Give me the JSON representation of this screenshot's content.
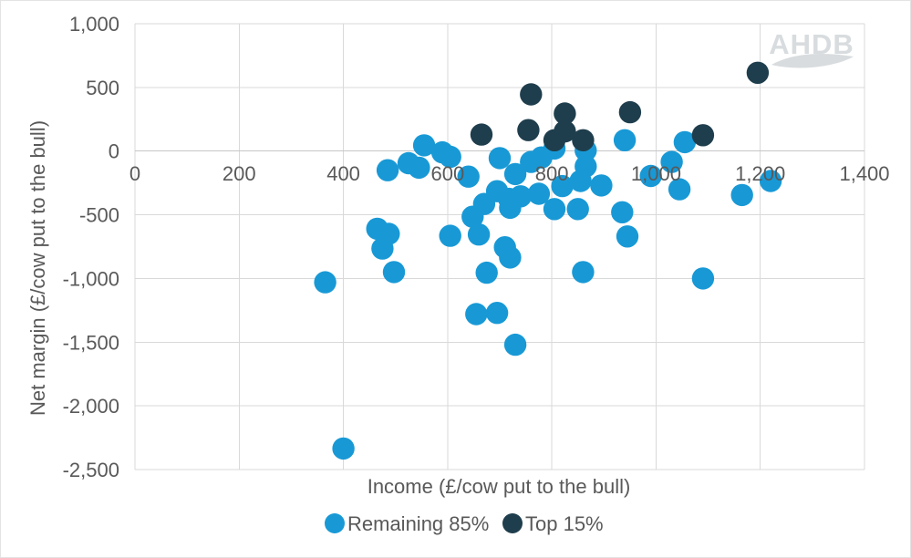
{
  "logo": {
    "text": "AHDB"
  },
  "legend": {
    "items": [
      {
        "label": "Remaining 85%",
        "color": "#1899D6"
      },
      {
        "label": "Top 15%",
        "color": "#1F3E4D"
      }
    ]
  },
  "styles": {
    "text_color": "#595959",
    "grid_color": "#D9D9D9",
    "zero_axis_color": "#C6C6C6",
    "logo_color": "#D8DCDE",
    "background": "#FFFFFF",
    "marker_radius": 12.2,
    "legend_marker_radius": 11
  },
  "chart_data": {
    "type": "scatter",
    "title": "",
    "xlabel": "Income (£/cow put to the bull)",
    "ylabel": "Net margin (£/cow put to the bull)",
    "xlim": [
      0,
      1400
    ],
    "ylim": [
      -2500,
      1000
    ],
    "x_tick_values": [
      0,
      200,
      400,
      600,
      800,
      1000,
      1200,
      1400
    ],
    "x_tick_labels": [
      "0",
      "200",
      "400",
      "600",
      "800",
      "1,000",
      "1,200",
      "1,400"
    ],
    "y_tick_values": [
      1000,
      500,
      0,
      -500,
      -1000,
      -1500,
      -2000,
      -2500
    ],
    "y_tick_labels": [
      "1,000",
      "500",
      "0",
      "-500",
      "-1,000",
      "-1,500",
      "-2,000",
      "-2,500"
    ],
    "grid": true,
    "legend_position": "bottom",
    "series": [
      {
        "name": "Remaining 85%",
        "color": "#1899D6",
        "points": [
          [
            365,
            -1030
          ],
          [
            400,
            -2335
          ],
          [
            465,
            -610
          ],
          [
            485,
            -150
          ],
          [
            487,
            -650
          ],
          [
            475,
            -765
          ],
          [
            497,
            -950
          ],
          [
            525,
            -95
          ],
          [
            545,
            -130
          ],
          [
            555,
            45
          ],
          [
            590,
            -10
          ],
          [
            605,
            -45
          ],
          [
            640,
            -200
          ],
          [
            605,
            -665
          ],
          [
            660,
            -655
          ],
          [
            648,
            -515
          ],
          [
            670,
            -415
          ],
          [
            695,
            -315
          ],
          [
            718,
            -375
          ],
          [
            655,
            -1280
          ],
          [
            695,
            -1270
          ],
          [
            675,
            -955
          ],
          [
            710,
            -755
          ],
          [
            720,
            -835
          ],
          [
            730,
            -1520
          ],
          [
            700,
            -55
          ],
          [
            730,
            -180
          ],
          [
            740,
            -355
          ],
          [
            720,
            -445
          ],
          [
            760,
            -85
          ],
          [
            780,
            -50
          ],
          [
            805,
            20
          ],
          [
            805,
            -455
          ],
          [
            775,
            -335
          ],
          [
            820,
            -275
          ],
          [
            850,
            -455
          ],
          [
            855,
            -235
          ],
          [
            865,
            -120
          ],
          [
            865,
            5
          ],
          [
            895,
            -270
          ],
          [
            860,
            -950
          ],
          [
            935,
            -480
          ],
          [
            945,
            -670
          ],
          [
            940,
            85
          ],
          [
            990,
            -195
          ],
          [
            1030,
            -85
          ],
          [
            1055,
            70
          ],
          [
            1045,
            -300
          ],
          [
            1090,
            -1000
          ],
          [
            1165,
            -345
          ],
          [
            1220,
            -235
          ]
        ]
      },
      {
        "name": "Top 15%",
        "color": "#1F3E4D",
        "points": [
          [
            665,
            130
          ],
          [
            755,
            165
          ],
          [
            760,
            445
          ],
          [
            805,
            85
          ],
          [
            825,
            155
          ],
          [
            825,
            295
          ],
          [
            860,
            85
          ],
          [
            950,
            305
          ],
          [
            1090,
            125
          ],
          [
            1195,
            615
          ]
        ]
      }
    ]
  }
}
